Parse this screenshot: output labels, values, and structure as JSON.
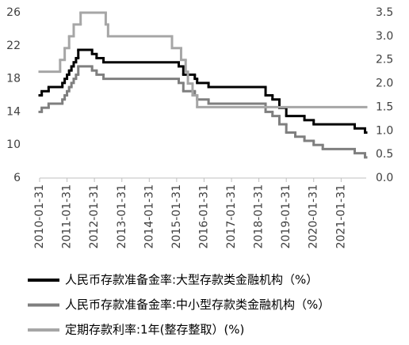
{
  "chart_data": {
    "type": "step-line",
    "xlim": [
      "2010-01-31",
      "2021-12-31"
    ],
    "xticks": [
      "2010-01-31",
      "2011-01-31",
      "2012-01-31",
      "2013-01-31",
      "2014-01-31",
      "2015-01-31",
      "2016-01-31",
      "2017-01-31",
      "2018-01-31",
      "2019-01-31",
      "2020-01-31",
      "2021-01-31"
    ],
    "ylim": [
      6,
      26
    ],
    "yticks": [
      6,
      10,
      14,
      18,
      22,
      26
    ],
    "y2lim": [
      0,
      3.5
    ],
    "y2ticks": [
      {
        "value": 0,
        "label": "0.0"
      },
      0.5,
      {
        "value": 1,
        "label": "1.0"
      },
      1.5,
      {
        "value": 2,
        "label": "2.0"
      },
      2.5,
      {
        "value": 3,
        "label": "3.0"
      },
      3.5
    ],
    "legend": "bottom",
    "series": [
      {
        "name": "人民币存款准备金率:大型存款类金融机构（%）",
        "color": "#000000",
        "x": [
          "2010-01-31",
          "2010-02-28",
          "2010-05-31",
          "2010-11-30",
          "2010-12-31",
          "2011-01-31",
          "2011-02-28",
          "2011-03-31",
          "2011-04-30",
          "2011-05-31",
          "2011-06-30",
          "2011-12-31",
          "2012-02-29",
          "2012-05-31",
          "2015-02-28",
          "2015-04-30",
          "2015-09-30",
          "2015-10-31",
          "2016-03-31",
          "2018-04-30",
          "2018-07-31",
          "2018-10-31",
          "2019-01-31",
          "2019-09-30",
          "2020-01-31",
          "2021-07-31",
          "2021-12-15"
        ],
        "values": [
          16,
          16.5,
          17,
          17.5,
          18,
          18.5,
          19,
          19.5,
          20,
          20.5,
          21.5,
          21,
          20.5,
          20,
          19.5,
          18.5,
          18,
          17.5,
          17,
          16,
          15.5,
          14.5,
          13.5,
          13,
          12.5,
          12,
          11.5
        ]
      },
      {
        "name": "人民币存款准备金率:中小型存款类金融机构（%）",
        "color": "#7f7f7f",
        "x": [
          "2010-01-31",
          "2010-02-28",
          "2010-05-31",
          "2010-11-30",
          "2010-12-31",
          "2011-01-31",
          "2011-02-28",
          "2011-03-31",
          "2011-04-30",
          "2011-05-31",
          "2011-06-30",
          "2011-12-31",
          "2012-02-29",
          "2012-05-31",
          "2015-02-28",
          "2015-04-30",
          "2015-09-30",
          "2015-10-31",
          "2016-03-31",
          "2018-04-30",
          "2018-07-31",
          "2018-10-31",
          "2019-01-31",
          "2019-05-31",
          "2019-09-30",
          "2020-01-31",
          "2020-05-31",
          "2021-07-31",
          "2021-12-15"
        ],
        "values": [
          14,
          14.5,
          15,
          15.5,
          16,
          16.5,
          17,
          17.5,
          18,
          18.5,
          19.5,
          19,
          18.5,
          18,
          17.5,
          16.5,
          16,
          15.5,
          15,
          14,
          13.5,
          12.5,
          11.5,
          11,
          10.5,
          10,
          9.5,
          9,
          8.5
        ]
      },
      {
        "name": "定期存款利率:1年(整存整取）(%)",
        "color": "#a6a6a6",
        "axis": "y2",
        "x": [
          "2010-01-31",
          "2010-10-31",
          "2010-12-31",
          "2011-02-28",
          "2011-04-30",
          "2011-07-31",
          "2012-06-30",
          "2012-07-31",
          "2014-11-30",
          "2015-03-31",
          "2015-05-31",
          "2015-06-30",
          "2015-08-31",
          "2015-10-31"
        ],
        "values": [
          2.25,
          2.5,
          2.75,
          3,
          3.25,
          3.5,
          3.25,
          3,
          2.75,
          2.5,
          2.25,
          2,
          1.75,
          1.5
        ]
      }
    ]
  }
}
